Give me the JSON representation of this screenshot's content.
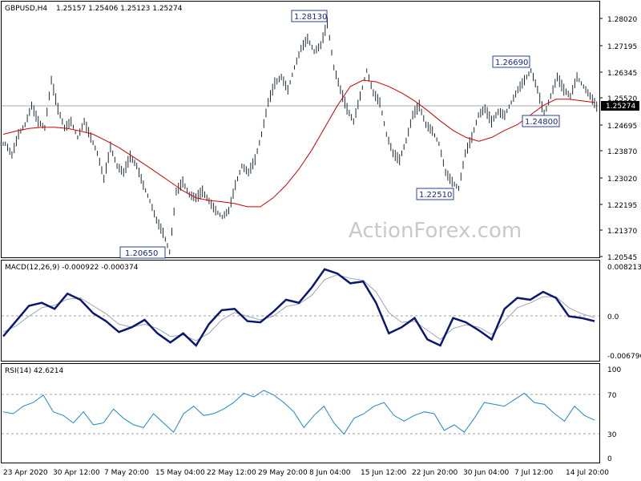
{
  "chart_data": {
    "type": "line",
    "symbol": "GBPUSD,H4",
    "ohlc_readout": "1.25157 1.25406 1.25123 1.25274",
    "watermark": "ActionForex.com",
    "colors": {
      "candles": "#1a2a3a",
      "moving_average": "#d00000",
      "macd_line": "#0b1870",
      "signal_line": "#9aa6b8",
      "rsi_line": "#1e88c8",
      "grid": "#a0a0a0",
      "callout_border": "#2a3f9a"
    },
    "x_tick_labels": [
      "23 Apr 2020",
      "30 Apr 12:00",
      "7 May 20:00",
      "15 May 04:00",
      "22 May 12:00",
      "29 May 20:00",
      "8 Jun 04:00",
      "15 Jun 12:00",
      "22 Jun 20:00",
      "30 Jun 04:00",
      "7 Jul 12:00",
      "14 Jul 20:00"
    ],
    "price_panel": {
      "ylim": [
        1.2053,
        1.2857
      ],
      "y_ticks": [
        "1.28020",
        "1.27195",
        "1.26345",
        "1.25520",
        "1.24695",
        "1.23870",
        "1.23020",
        "1.22195",
        "1.21370",
        "1.20545"
      ],
      "current_price": "1.25274",
      "current_value": 1.25274,
      "close_series": [
        1.241,
        1.2375,
        1.244,
        1.247,
        1.253,
        1.248,
        1.246,
        1.261,
        1.252,
        1.246,
        1.248,
        1.243,
        1.248,
        1.243,
        1.238,
        1.23,
        1.24,
        1.234,
        1.232,
        1.237,
        1.234,
        1.228,
        1.223,
        1.217,
        1.213,
        1.207,
        1.226,
        1.229,
        1.225,
        1.224,
        1.226,
        1.223,
        1.22,
        1.218,
        1.22,
        1.228,
        1.234,
        1.232,
        1.236,
        1.244,
        1.254,
        1.26,
        1.262,
        1.258,
        1.265,
        1.271,
        1.274,
        1.27,
        1.272,
        1.279,
        1.265,
        1.258,
        1.252,
        1.248,
        1.256,
        1.264,
        1.257,
        1.254,
        1.244,
        1.238,
        1.236,
        1.242,
        1.25,
        1.253,
        1.247,
        1.245,
        1.241,
        1.232,
        1.229,
        1.227,
        1.238,
        1.243,
        1.25,
        1.252,
        1.248,
        1.251,
        1.25,
        1.254,
        1.258,
        1.261,
        1.264,
        1.258,
        1.25,
        1.256,
        1.262,
        1.258,
        1.256,
        1.262,
        1.259,
        1.256,
        1.2527
      ],
      "moving_average": [
        1.244,
        1.245,
        1.2458,
        1.2462,
        1.2462,
        1.2458,
        1.245,
        1.244,
        1.242,
        1.2398,
        1.2372,
        1.2345,
        1.2318,
        1.229,
        1.2262,
        1.224,
        1.2232,
        1.2228,
        1.2222,
        1.2212,
        1.2212,
        1.224,
        1.228,
        1.233,
        1.239,
        1.246,
        1.253,
        1.259,
        1.261,
        1.2605,
        1.259,
        1.257,
        1.2545,
        1.2515,
        1.2482,
        1.2452,
        1.243,
        1.2418,
        1.243,
        1.2452,
        1.247,
        1.25,
        1.253,
        1.255,
        1.255,
        1.2545,
        1.254
      ],
      "callouts": [
        {
          "label": "1.28130",
          "value": 1.2813
        },
        {
          "label": "1.26690",
          "value": 1.2669
        },
        {
          "label": "1.24800",
          "value": 1.248
        },
        {
          "label": "1.22510",
          "value": 1.2251
        },
        {
          "label": "1.20650",
          "value": 1.2065
        }
      ]
    },
    "macd_panel": {
      "title": "MACD(12,26,9) -0.000922 -0.000374",
      "ylim": [
        -0.0075,
        0.0088
      ],
      "y_ticks": [
        "0.008213",
        "0.0",
        "-0.006796"
      ],
      "zero_line": 0,
      "macd": [
        -0.0035,
        -0.001,
        0.0015,
        0.002,
        0.001,
        0.0035,
        0.0025,
        0.0003,
        -0.001,
        -0.0028,
        -0.002,
        -0.0008,
        -0.003,
        -0.0045,
        -0.003,
        -0.005,
        -0.0015,
        0.0008,
        0.001,
        -0.001,
        -0.0012,
        0.0005,
        0.0025,
        0.002,
        0.0045,
        0.0075,
        0.0068,
        0.0052,
        0.0055,
        0.002,
        -0.003,
        -0.002,
        -0.0005,
        -0.004,
        -0.005,
        -0.0005,
        -0.0012,
        -0.0025,
        -0.004,
        0.001,
        0.0028,
        0.0025,
        0.0038,
        0.0028,
        -0.0002,
        -0.0005,
        -0.001
      ],
      "signal": [
        -0.0028,
        -0.0018,
        -0.0002,
        0.0012,
        0.0016,
        0.0026,
        0.0028,
        0.0015,
        0.0002,
        -0.0015,
        -0.002,
        -0.0015,
        -0.0022,
        -0.0035,
        -0.0033,
        -0.0042,
        -0.003,
        -0.0008,
        0.0004,
        -0.0002,
        -0.0008,
        -0.0002,
        0.0014,
        0.0018,
        0.0032,
        0.0058,
        0.0066,
        0.006,
        0.0057,
        0.0038,
        0.0004,
        -0.0012,
        -0.001,
        -0.0025,
        -0.004,
        -0.0022,
        -0.0016,
        -0.002,
        -0.0032,
        -0.001,
        0.0012,
        0.002,
        0.003,
        0.003,
        0.0012,
        0.0002,
        -0.0004
      ]
    },
    "rsi_panel": {
      "title": "RSI(14) 42.6214",
      "ylim": [
        0,
        100
      ],
      "y_ticks": [
        "100",
        "70",
        "30",
        "0"
      ],
      "levels": [
        70,
        30
      ],
      "rsi": [
        52,
        50,
        58,
        62,
        70,
        52,
        48,
        40,
        52,
        38,
        40,
        55,
        45,
        38,
        35,
        50,
        40,
        30,
        50,
        58,
        48,
        50,
        55,
        62,
        72,
        68,
        75,
        70,
        62,
        52,
        35,
        48,
        58,
        40,
        28,
        45,
        50,
        58,
        62,
        48,
        42,
        48,
        52,
        50,
        32,
        38,
        30,
        45,
        62,
        60,
        58,
        65,
        72,
        62,
        60,
        50,
        42,
        58,
        48,
        43
      ]
    }
  }
}
